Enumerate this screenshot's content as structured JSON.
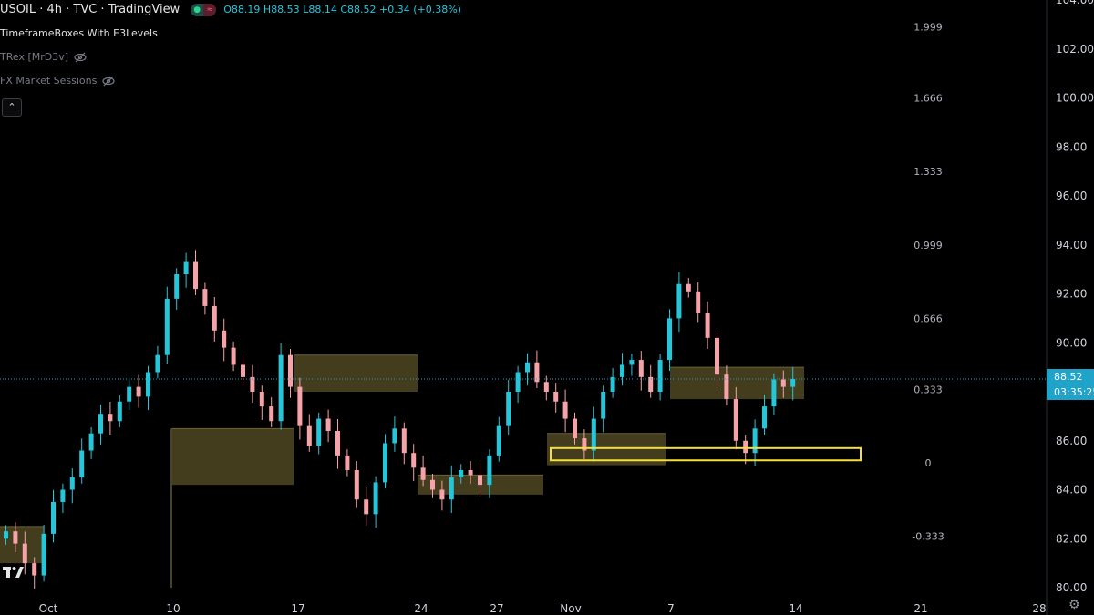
{
  "header": {
    "symbol_line": "USOIL · 4h · TVC · TradingView",
    "ohlc": {
      "o_label": "O",
      "o": "88.19",
      "h_label": "H",
      "h": "88.53",
      "l_label": "L",
      "l": "88.14",
      "c_label": "C",
      "c": "88.52",
      "change": "+0.34 (+0.38%)"
    }
  },
  "indicators": [
    {
      "label": "TimeframeBoxes With E3Levels",
      "hidden": false
    },
    {
      "label": "TRex [MrD3v]",
      "hidden": true
    },
    {
      "label": "FX Market Sessions",
      "hidden": true
    }
  ],
  "collapse_icon": "chevron-up-icon",
  "price_axis": {
    "ticks": [
      "104.00",
      "102.00",
      "100.00",
      "98.00",
      "96.00",
      "94.00",
      "92.00",
      "90.00",
      "88.00",
      "86.00",
      "84.00",
      "82.00",
      "80.00"
    ],
    "current_price": "88.52",
    "countdown": "03:35:25"
  },
  "level_labels": [
    "1.999",
    "1.666",
    "1.333",
    "0.999",
    "0.666",
    "0.333",
    "0",
    "-0.333"
  ],
  "time_axis": {
    "ticks": [
      "Oct",
      "10",
      "17",
      "24",
      "27",
      "Nov",
      "7",
      "14",
      "21",
      "28"
    ]
  },
  "colors": {
    "up": "#26c6da",
    "down": "#f5a3a8",
    "box_fill": "#4a4420",
    "highlight": "#f5e03a",
    "price_line": "#1fa3c8"
  },
  "chart_data": {
    "type": "candlestick",
    "symbol": "USOIL",
    "timeframe": "4h",
    "ylim": [
      80,
      104
    ],
    "current_price": 88.52,
    "levels": {
      "1.999": 102.9,
      "1.666": 100.0,
      "1.333": 97.0,
      "0.999": 94.0,
      "0.666": 91.0,
      "0.333": 88.1,
      "0": 85.1,
      "-0.333": 82.1
    },
    "timeframe_boxes": [
      {
        "top": 82.5,
        "bottom": 81.0
      },
      {
        "top": 86.5,
        "bottom": 84.2
      },
      {
        "top": 89.5,
        "bottom": 88.0
      },
      {
        "top": 84.6,
        "bottom": 83.8
      },
      {
        "top": 86.3,
        "bottom": 85.0
      },
      {
        "top": 89.0,
        "bottom": 87.7
      }
    ],
    "highlight_zone": {
      "top": 85.7,
      "bottom": 85.2
    },
    "closes": [
      82.3,
      81.8,
      81.0,
      80.5,
      82.2,
      83.5,
      84.0,
      84.5,
      85.6,
      86.3,
      87.1,
      86.8,
      87.6,
      88.2,
      87.8,
      88.8,
      89.5,
      91.8,
      92.8,
      93.3,
      92.2,
      91.5,
      90.5,
      89.8,
      89.1,
      88.6,
      88.0,
      87.4,
      86.8,
      89.5,
      88.2,
      86.6,
      85.8,
      86.9,
      86.4,
      85.4,
      84.8,
      83.6,
      83.0,
      84.3,
      85.9,
      86.5,
      85.5,
      84.9,
      84.4,
      84.0,
      83.6,
      84.5,
      84.8,
      84.6,
      84.2,
      85.4,
      86.6,
      88.0,
      88.8,
      89.2,
      88.4,
      88.0,
      87.6,
      86.9,
      86.1,
      85.6,
      86.9,
      88.0,
      88.6,
      89.1,
      89.3,
      88.6,
      88.0,
      89.3,
      91.0,
      92.4,
      92.1,
      91.2,
      90.2,
      88.7,
      87.7,
      86.0,
      85.5,
      86.5,
      87.4,
      88.5,
      88.2,
      88.52
    ]
  }
}
